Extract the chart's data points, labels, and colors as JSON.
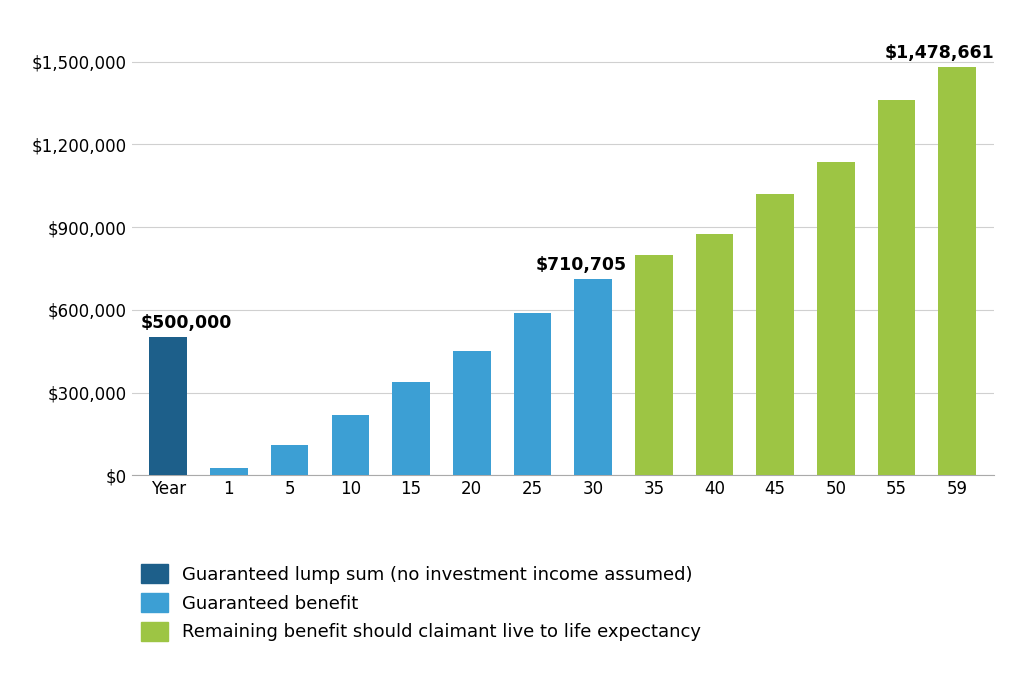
{
  "categories": [
    "Year",
    "1",
    "5",
    "10",
    "15",
    "20",
    "25",
    "30",
    "35",
    "40",
    "45",
    "50",
    "55",
    "59"
  ],
  "values": [
    500000,
    28000,
    110000,
    220000,
    340000,
    450000,
    590000,
    710705,
    800000,
    875000,
    1020000,
    1135000,
    1360000,
    1478661
  ],
  "bar_colors": [
    "#1d5f8a",
    "#3c9fd4",
    "#3c9fd4",
    "#3c9fd4",
    "#3c9fd4",
    "#3c9fd4",
    "#3c9fd4",
    "#3c9fd4",
    "#9dc544",
    "#9dc544",
    "#9dc544",
    "#9dc544",
    "#9dc544",
    "#9dc544"
  ],
  "lump_sum_label": "$500,000",
  "guaranteed_benefit_label": "$710,705",
  "remaining_benefit_label": "$1,478,661",
  "lump_sum_idx": 0,
  "guaranteed_last_idx": 7,
  "remaining_last_idx": 13,
  "legend_dark_blue": "#1d5f8a",
  "legend_light_blue": "#3c9fd4",
  "legend_green": "#9dc544",
  "legend_text_1": "Guaranteed lump sum (no investment income assumed)",
  "legend_text_2": "Guaranteed benefit",
  "legend_text_3": "Remaining benefit should claimant live to life expectancy",
  "ylim": [
    0,
    1600000
  ],
  "ytick_values": [
    0,
    300000,
    600000,
    900000,
    1200000,
    1500000
  ],
  "ytick_labels": [
    "$0",
    "$300,000",
    "$600,000",
    "$900,000",
    "$1,200,000",
    "$1,500,000"
  ],
  "bg_color": "#ffffff",
  "grid_color": "#d0d0d0",
  "bar_width": 0.62,
  "annotation_fontsize": 12.5,
  "legend_fontsize": 13,
  "tick_fontsize": 12
}
